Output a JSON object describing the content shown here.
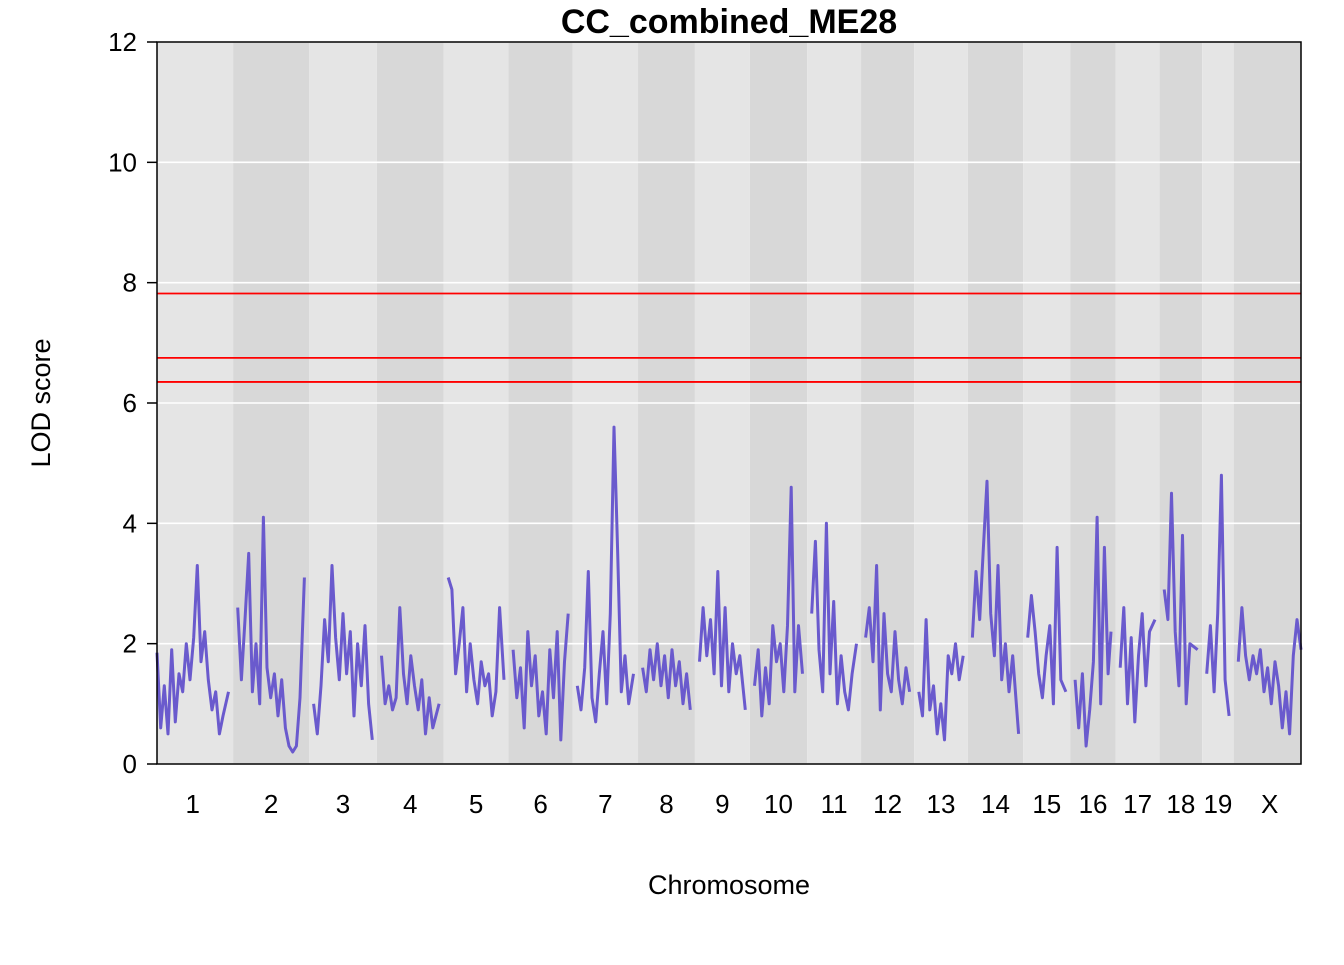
{
  "chart_data": {
    "type": "line",
    "title": "CC_combined_ME28",
    "xlabel": "Chromosome",
    "ylabel": "LOD score",
    "ylim": [
      0,
      12
    ],
    "y_ticks": [
      0,
      2,
      4,
      6,
      8,
      10,
      12
    ],
    "grid": true,
    "colors": {
      "line": "#6a5acd",
      "threshold": "#ff0000",
      "band_light": "#e5e5e5",
      "band_dark": "#d8d8d8",
      "grid": "#ffffff"
    },
    "thresholds": [
      7.82,
      6.75,
      6.35
    ],
    "chromosomes": [
      "1",
      "2",
      "3",
      "4",
      "5",
      "6",
      "7",
      "8",
      "9",
      "10",
      "11",
      "12",
      "13",
      "14",
      "15",
      "16",
      "17",
      "18",
      "19",
      "X"
    ],
    "chromosome_lengths": [
      195,
      182,
      160,
      157,
      152,
      150,
      153,
      130,
      125,
      131,
      122,
      120,
      121,
      126,
      104,
      98,
      95,
      91,
      61,
      171
    ],
    "series": [
      {
        "values": [
          [
            [
              0,
              1.85
            ],
            [
              10,
              0.6
            ],
            [
              20,
              1.3
            ],
            [
              30,
              0.5
            ],
            [
              40,
              1.9
            ],
            [
              50,
              0.7
            ],
            [
              60,
              1.5
            ],
            [
              70,
              1.2
            ],
            [
              80,
              2.0
            ],
            [
              90,
              1.4
            ],
            [
              100,
              2.1
            ],
            [
              110,
              3.3
            ],
            [
              120,
              1.7
            ],
            [
              130,
              2.2
            ],
            [
              140,
              1.4
            ],
            [
              150,
              0.9
            ],
            [
              160,
              1.2
            ],
            [
              170,
              0.5
            ],
            [
              180,
              0.8
            ],
            [
              195,
              1.2
            ]
          ],
          [
            [
              0,
              2.6
            ],
            [
              10,
              1.4
            ],
            [
              20,
              2.4
            ],
            [
              30,
              3.5
            ],
            [
              40,
              1.2
            ],
            [
              50,
              2.0
            ],
            [
              60,
              1.0
            ],
            [
              70,
              4.1
            ],
            [
              80,
              1.6
            ],
            [
              90,
              1.1
            ],
            [
              100,
              1.5
            ],
            [
              110,
              0.8
            ],
            [
              120,
              1.4
            ],
            [
              130,
              0.6
            ],
            [
              140,
              0.3
            ],
            [
              150,
              0.2
            ],
            [
              160,
              0.3
            ],
            [
              170,
              1.1
            ],
            [
              182,
              3.1
            ]
          ],
          [
            [
              0,
              1.0
            ],
            [
              10,
              0.5
            ],
            [
              20,
              1.3
            ],
            [
              30,
              2.4
            ],
            [
              40,
              1.7
            ],
            [
              50,
              3.3
            ],
            [
              60,
              2.1
            ],
            [
              70,
              1.4
            ],
            [
              80,
              2.5
            ],
            [
              90,
              1.5
            ],
            [
              100,
              2.2
            ],
            [
              110,
              0.8
            ],
            [
              120,
              2.0
            ],
            [
              130,
              1.3
            ],
            [
              140,
              2.3
            ],
            [
              150,
              1.0
            ],
            [
              160,
              0.4
            ]
          ],
          [
            [
              0,
              1.8
            ],
            [
              10,
              1.0
            ],
            [
              20,
              1.3
            ],
            [
              30,
              0.9
            ],
            [
              40,
              1.1
            ],
            [
              50,
              2.6
            ],
            [
              60,
              1.5
            ],
            [
              70,
              1.0
            ],
            [
              80,
              1.8
            ],
            [
              90,
              1.3
            ],
            [
              100,
              0.9
            ],
            [
              110,
              1.4
            ],
            [
              120,
              0.5
            ],
            [
              130,
              1.1
            ],
            [
              140,
              0.6
            ],
            [
              157,
              1.0
            ]
          ],
          [
            [
              0,
              3.1
            ],
            [
              10,
              2.9
            ],
            [
              20,
              1.5
            ],
            [
              30,
              2.0
            ],
            [
              40,
              2.6
            ],
            [
              50,
              1.2
            ],
            [
              60,
              2.0
            ],
            [
              70,
              1.4
            ],
            [
              80,
              1.0
            ],
            [
              90,
              1.7
            ],
            [
              100,
              1.3
            ],
            [
              110,
              1.5
            ],
            [
              120,
              0.8
            ],
            [
              130,
              1.2
            ],
            [
              140,
              2.6
            ],
            [
              152,
              1.4
            ]
          ],
          [
            [
              0,
              1.9
            ],
            [
              10,
              1.1
            ],
            [
              20,
              1.6
            ],
            [
              30,
              0.6
            ],
            [
              40,
              2.2
            ],
            [
              50,
              1.3
            ],
            [
              60,
              1.8
            ],
            [
              70,
              0.8
            ],
            [
              80,
              1.2
            ],
            [
              90,
              0.5
            ],
            [
              100,
              1.9
            ],
            [
              110,
              1.1
            ],
            [
              120,
              2.2
            ],
            [
              130,
              0.4
            ],
            [
              140,
              1.7
            ],
            [
              150,
              2.5
            ]
          ],
          [
            [
              0,
              1.3
            ],
            [
              10,
              0.9
            ],
            [
              20,
              1.6
            ],
            [
              30,
              3.2
            ],
            [
              40,
              1.1
            ],
            [
              50,
              0.7
            ],
            [
              60,
              1.5
            ],
            [
              70,
              2.2
            ],
            [
              80,
              1.0
            ],
            [
              90,
              2.5
            ],
            [
              100,
              5.6
            ],
            [
              105,
              4.6
            ],
            [
              110,
              3.5
            ],
            [
              120,
              1.2
            ],
            [
              130,
              1.8
            ],
            [
              140,
              1.0
            ],
            [
              153,
              1.5
            ]
          ],
          [
            [
              0,
              1.6
            ],
            [
              10,
              1.2
            ],
            [
              20,
              1.9
            ],
            [
              30,
              1.4
            ],
            [
              40,
              2.0
            ],
            [
              50,
              1.3
            ],
            [
              60,
              1.8
            ],
            [
              70,
              1.1
            ],
            [
              80,
              1.9
            ],
            [
              90,
              1.3
            ],
            [
              100,
              1.7
            ],
            [
              110,
              1.0
            ],
            [
              120,
              1.5
            ],
            [
              130,
              0.9
            ]
          ],
          [
            [
              0,
              1.7
            ],
            [
              10,
              2.6
            ],
            [
              20,
              1.8
            ],
            [
              30,
              2.4
            ],
            [
              40,
              1.5
            ],
            [
              50,
              3.2
            ],
            [
              60,
              1.3
            ],
            [
              70,
              2.6
            ],
            [
              80,
              1.2
            ],
            [
              90,
              2.0
            ],
            [
              100,
              1.5
            ],
            [
              110,
              1.8
            ],
            [
              125,
              0.9
            ]
          ],
          [
            [
              0,
              1.3
            ],
            [
              10,
              1.9
            ],
            [
              20,
              0.8
            ],
            [
              30,
              1.6
            ],
            [
              40,
              1.0
            ],
            [
              50,
              2.3
            ],
            [
              60,
              1.7
            ],
            [
              70,
              2.0
            ],
            [
              80,
              1.2
            ],
            [
              90,
              2.3
            ],
            [
              100,
              4.6
            ],
            [
              110,
              1.2
            ],
            [
              120,
              2.3
            ],
            [
              131,
              1.5
            ]
          ],
          [
            [
              0,
              2.5
            ],
            [
              10,
              3.7
            ],
            [
              20,
              1.9
            ],
            [
              30,
              1.2
            ],
            [
              40,
              4.0
            ],
            [
              50,
              1.5
            ],
            [
              60,
              2.7
            ],
            [
              70,
              1.0
            ],
            [
              80,
              1.8
            ],
            [
              90,
              1.2
            ],
            [
              100,
              0.9
            ],
            [
              110,
              1.5
            ],
            [
              122,
              2.0
            ]
          ],
          [
            [
              0,
              2.1
            ],
            [
              10,
              2.6
            ],
            [
              20,
              1.7
            ],
            [
              30,
              3.3
            ],
            [
              40,
              0.9
            ],
            [
              50,
              2.5
            ],
            [
              60,
              1.5
            ],
            [
              70,
              1.2
            ],
            [
              80,
              2.2
            ],
            [
              90,
              1.4
            ],
            [
              100,
              1.0
            ],
            [
              110,
              1.6
            ],
            [
              120,
              1.2
            ]
          ],
          [
            [
              0,
              1.2
            ],
            [
              10,
              0.8
            ],
            [
              20,
              2.4
            ],
            [
              30,
              0.9
            ],
            [
              40,
              1.3
            ],
            [
              50,
              0.5
            ],
            [
              60,
              1.0
            ],
            [
              70,
              0.4
            ],
            [
              80,
              1.8
            ],
            [
              90,
              1.5
            ],
            [
              100,
              2.0
            ],
            [
              110,
              1.4
            ],
            [
              121,
              1.8
            ]
          ],
          [
            [
              0,
              2.1
            ],
            [
              10,
              3.2
            ],
            [
              20,
              2.4
            ],
            [
              30,
              3.6
            ],
            [
              40,
              4.7
            ],
            [
              50,
              2.5
            ],
            [
              60,
              1.8
            ],
            [
              70,
              3.3
            ],
            [
              80,
              1.4
            ],
            [
              90,
              2.0
            ],
            [
              100,
              1.2
            ],
            [
              110,
              1.8
            ],
            [
              126,
              0.5
            ]
          ],
          [
            [
              0,
              2.1
            ],
            [
              10,
              2.8
            ],
            [
              20,
              2.2
            ],
            [
              30,
              1.5
            ],
            [
              40,
              1.1
            ],
            [
              50,
              1.8
            ],
            [
              60,
              2.3
            ],
            [
              70,
              1.0
            ],
            [
              80,
              3.6
            ],
            [
              90,
              1.4
            ],
            [
              104,
              1.2
            ]
          ],
          [
            [
              0,
              1.4
            ],
            [
              10,
              0.6
            ],
            [
              20,
              1.5
            ],
            [
              30,
              0.3
            ],
            [
              40,
              0.9
            ],
            [
              50,
              1.7
            ],
            [
              60,
              4.1
            ],
            [
              70,
              1.0
            ],
            [
              80,
              3.6
            ],
            [
              90,
              1.5
            ],
            [
              98,
              2.2
            ]
          ],
          [
            [
              0,
              1.6
            ],
            [
              10,
              2.6
            ],
            [
              20,
              1.0
            ],
            [
              30,
              2.1
            ],
            [
              40,
              0.7
            ],
            [
              50,
              1.8
            ],
            [
              60,
              2.5
            ],
            [
              70,
              1.3
            ],
            [
              80,
              2.2
            ],
            [
              95,
              2.4
            ]
          ],
          [
            [
              0,
              2.9
            ],
            [
              10,
              2.4
            ],
            [
              20,
              4.5
            ],
            [
              30,
              2.2
            ],
            [
              40,
              1.3
            ],
            [
              50,
              3.8
            ],
            [
              60,
              1.0
            ],
            [
              70,
              2.0
            ],
            [
              91,
              1.9
            ]
          ],
          [
            [
              0,
              1.5
            ],
            [
              10,
              2.3
            ],
            [
              20,
              1.2
            ],
            [
              30,
              2.5
            ],
            [
              40,
              4.8
            ],
            [
              50,
              1.4
            ],
            [
              61,
              0.8
            ]
          ],
          [
            [
              0,
              1.7
            ],
            [
              10,
              2.6
            ],
            [
              20,
              1.8
            ],
            [
              30,
              1.4
            ],
            [
              40,
              1.8
            ],
            [
              50,
              1.5
            ],
            [
              60,
              1.9
            ],
            [
              70,
              1.2
            ],
            [
              80,
              1.6
            ],
            [
              90,
              1.0
            ],
            [
              100,
              1.7
            ],
            [
              110,
              1.3
            ],
            [
              120,
              0.6
            ],
            [
              130,
              1.2
            ],
            [
              140,
              0.5
            ],
            [
              150,
              1.8
            ],
            [
              160,
              2.4
            ],
            [
              171,
              1.9
            ]
          ]
        ]
      }
    ]
  }
}
